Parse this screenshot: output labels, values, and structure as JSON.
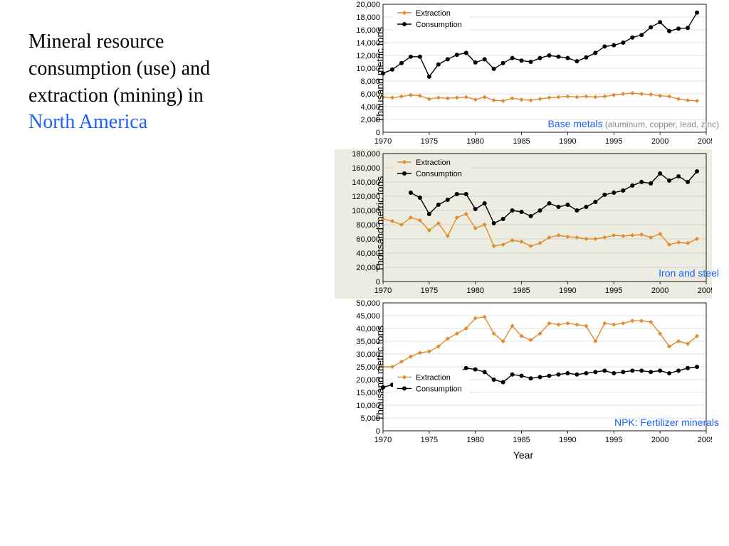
{
  "title_line1": "Mineral resource",
  "title_line2": "consumption (use) and",
  "title_line3": "extraction (mining) in",
  "title_line4": "North America",
  "title_color_main": "#000000",
  "title_color_highlight": "#1a5fff",
  "ylabel": "Thousand metric tons",
  "xlabel": "Year",
  "legend_extraction": "Extraction",
  "legend_consumption": "Consumption",
  "color_extraction": "#e08b2c",
  "color_consumption": "#000000",
  "grid_color": "#bfbfbf",
  "tick_fontsize": 11,
  "label_fontsize": 14,
  "years": [
    1970,
    1971,
    1972,
    1973,
    1974,
    1975,
    1976,
    1977,
    1978,
    1979,
    1980,
    1981,
    1982,
    1983,
    1984,
    1985,
    1986,
    1987,
    1988,
    1989,
    1990,
    1991,
    1992,
    1993,
    1994,
    1995,
    1996,
    1997,
    1998,
    1999,
    2000,
    2001,
    2002,
    2003,
    2004
  ],
  "x_ticks": [
    1970,
    1975,
    1980,
    1985,
    1990,
    1995,
    2000,
    2005
  ],
  "charts": [
    {
      "id": "c1",
      "title_main": "Base metals",
      "title_sub": " (aluminum, copper, lead, zinc)",
      "bg": "#ffffff",
      "ylim": [
        0,
        20000
      ],
      "ytick_step": 2000,
      "y_ticks": [
        0,
        2000,
        4000,
        6000,
        8000,
        10000,
        12000,
        14000,
        16000,
        18000,
        20000
      ],
      "legend_pos": "top-left",
      "title_pos": "bottom-right",
      "extraction": [
        5500,
        5400,
        5600,
        5800,
        5700,
        5200,
        5400,
        5300,
        5400,
        5500,
        5100,
        5500,
        5000,
        4900,
        5300,
        5100,
        5000,
        5200,
        5400,
        5500,
        5600,
        5500,
        5600,
        5500,
        5600,
        5800,
        6000,
        6100,
        6000,
        5900,
        5700,
        5600,
        5200,
        5000,
        4900
      ],
      "consumption": [
        9200,
        9800,
        10800,
        11800,
        11800,
        8700,
        10600,
        11400,
        12100,
        12400,
        10900,
        11400,
        9900,
        10800,
        11600,
        11200,
        11000,
        11600,
        12000,
        11800,
        11600,
        11100,
        11700,
        12400,
        13400,
        13600,
        14000,
        14800,
        15200,
        16400,
        17200,
        15800,
        16200,
        16300,
        18700
      ]
    },
    {
      "id": "c2",
      "title_main": "Iron and steel",
      "title_sub": "",
      "bg": "#edece0",
      "ylim": [
        0,
        180000
      ],
      "ytick_step": 20000,
      "y_ticks": [
        0,
        20000,
        40000,
        60000,
        80000,
        100000,
        120000,
        140000,
        160000,
        180000
      ],
      "legend_pos": "top-left",
      "title_pos": "bottom-right",
      "extraction": [
        88000,
        85000,
        80000,
        90000,
        86000,
        72000,
        82000,
        64000,
        90000,
        95000,
        75000,
        80000,
        50000,
        52000,
        58000,
        56000,
        50000,
        54000,
        62000,
        65000,
        63000,
        62000,
        60000,
        60000,
        62000,
        65000,
        64000,
        65000,
        66000,
        62000,
        67000,
        52000,
        55000,
        54000,
        60000
      ],
      "consumption": [
        null,
        null,
        null,
        125000,
        118000,
        95000,
        108000,
        115000,
        123000,
        123000,
        102000,
        110000,
        82000,
        88000,
        100000,
        98000,
        92000,
        100000,
        110000,
        105000,
        108000,
        100000,
        105000,
        112000,
        122000,
        125000,
        128000,
        135000,
        140000,
        138000,
        152000,
        142000,
        148000,
        140000,
        155000
      ]
    },
    {
      "id": "c3",
      "title_main": "NPK: Fertilizer minerals",
      "title_sub": "",
      "bg": "#ffffff",
      "ylim": [
        0,
        50000
      ],
      "ytick_step": 5000,
      "y_ticks": [
        0,
        5000,
        10000,
        15000,
        20000,
        25000,
        30000,
        35000,
        40000,
        45000,
        50000
      ],
      "legend_pos": "mid-left",
      "title_pos": "bottom-right",
      "extraction": [
        25000,
        25000,
        27000,
        29000,
        30500,
        31000,
        33000,
        36000,
        38000,
        40000,
        44000,
        44500,
        38000,
        35000,
        41000,
        37000,
        35500,
        38000,
        42000,
        41500,
        42000,
        41500,
        41000,
        35000,
        42000,
        41500,
        42000,
        43000,
        43000,
        42500,
        38000,
        33000,
        35000,
        34000,
        37000
      ],
      "consumption": [
        17000,
        18000,
        18500,
        19500,
        20500,
        18000,
        21000,
        22000,
        22500,
        24500,
        24000,
        23000,
        20000,
        19000,
        22000,
        21500,
        20500,
        21000,
        21500,
        22000,
        22500,
        22000,
        22500,
        23000,
        23500,
        22500,
        23000,
        23500,
        23500,
        23000,
        23500,
        22500,
        23500,
        24500,
        25000
      ]
    }
  ]
}
